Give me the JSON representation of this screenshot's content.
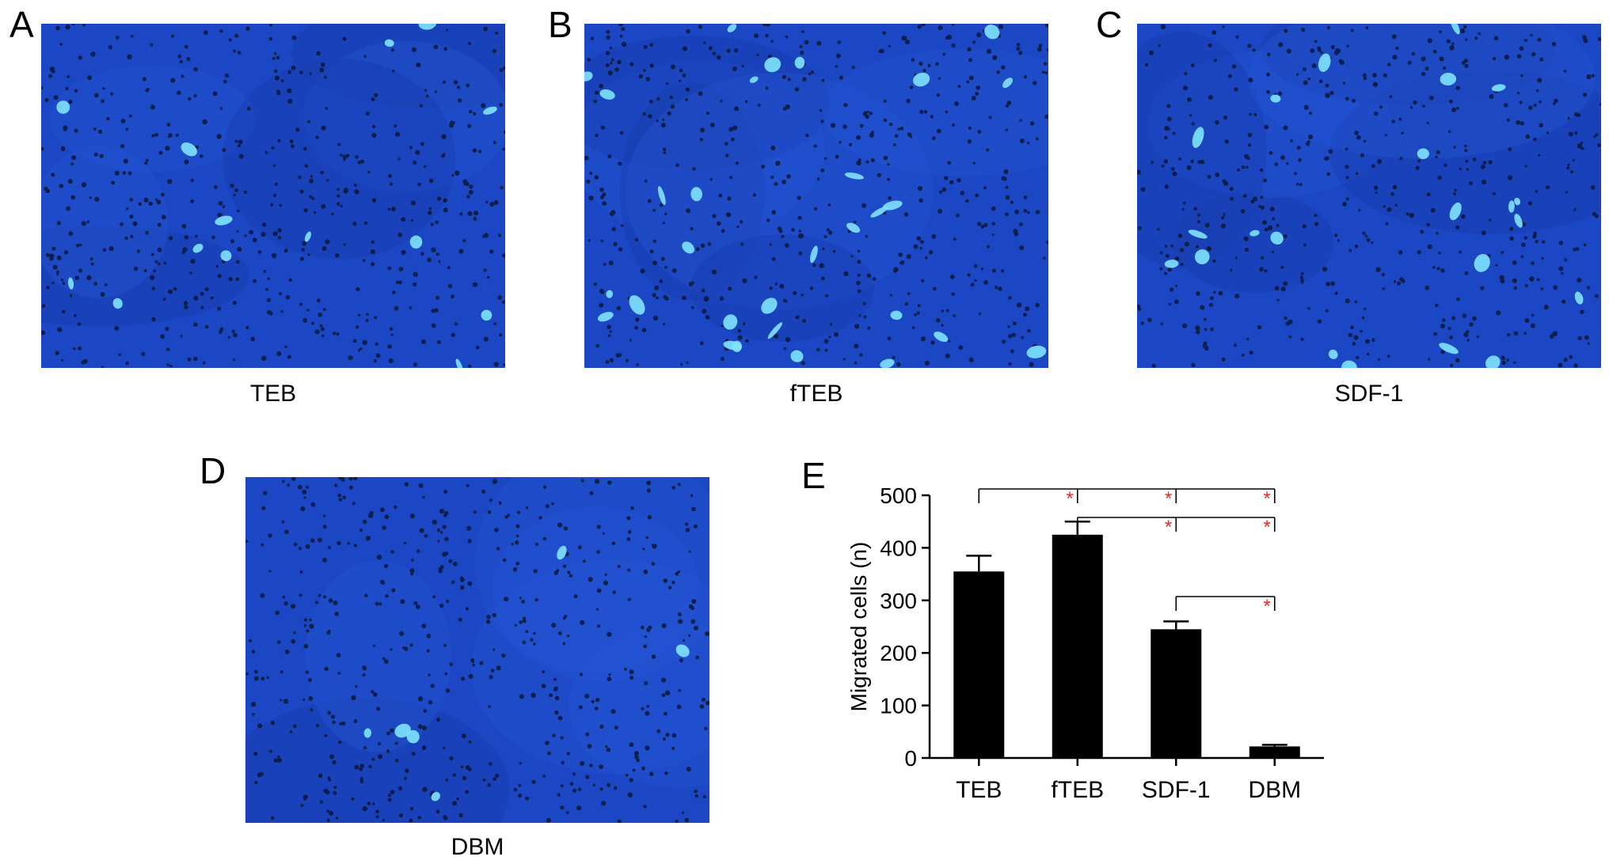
{
  "panels": [
    {
      "letter": "A",
      "caption": "TEB"
    },
    {
      "letter": "B",
      "caption": "fTEB"
    },
    {
      "letter": "C",
      "caption": "SDF-1"
    },
    {
      "letter": "D",
      "caption": "DBM"
    },
    {
      "letter": "E",
      "caption": ""
    }
  ],
  "colors": {
    "micrograph_background": "#1b47c4",
    "stained_cell": "#7fe3ff",
    "pore": "#0b1530",
    "bar": "#000000",
    "significance": "#e8281f"
  },
  "chart_data": {
    "type": "bar",
    "categories": [
      "TEB",
      "fTEB",
      "SDF-1",
      "DBM"
    ],
    "values": [
      355,
      425,
      245,
      22
    ],
    "error": [
      30,
      25,
      15,
      3
    ],
    "ylabel": "Migrated cells (n)",
    "ylim": [
      0,
      500
    ],
    "yticks": [
      0,
      100,
      200,
      300,
      400,
      500
    ],
    "significance": [
      {
        "from": "TEB",
        "to": [
          "fTEB",
          "SDF-1",
          "DBM"
        ],
        "mark": "*"
      },
      {
        "from": "fTEB",
        "to": [
          "SDF-1",
          "DBM"
        ],
        "mark": "*"
      },
      {
        "from": "SDF-1",
        "to": [
          "DBM"
        ],
        "mark": "*"
      }
    ]
  }
}
